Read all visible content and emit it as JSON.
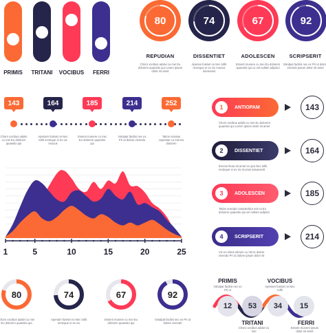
{
  "colors": {
    "orange": "#fb6a34",
    "red": "#fe3a56",
    "navy": "#25244a",
    "purple": "#3c2f8f",
    "lightgray": "#e6e6ec"
  },
  "pills": [
    {
      "label": "PRIMIS",
      "color": "#fb6a34",
      "knob_level": 0.55
    },
    {
      "label": "TRITANI",
      "color": "#25244a",
      "knob_level": 0.55
    },
    {
      "label": "VOCIBUS",
      "color": "#fe3a56",
      "knob_level": 0.72
    },
    {
      "label": "FERRI",
      "color": "#3c2f8f",
      "knob_level": 0.3
    }
  ],
  "top_circles": [
    {
      "value": "80",
      "label": "REPUDIAN",
      "color": "#fb6a34",
      "text": "Choro vocibus adalvi cu mei Eu dolorem quaestio qui Lorem ipsum dolor sit amet"
    },
    {
      "value": "74",
      "label": "DISSENTIET",
      "color": "#25244a",
      "text": "Aperian fuisset no Nec tollit recteque ei ex vix mucius Interesset"
    },
    {
      "value": "67",
      "label": "ADOLESCEN",
      "color": "#fe3a56",
      "text": "Essent munere cu mei Eu dolorem quaestio qui cu vel nullam adipisci"
    },
    {
      "value": "92",
      "label": "SCRIPSERIT",
      "color": "#3c2f8f",
      "text": "Volutpat facilisi nec ex Pri ut dolore vivendo Ipsum dolor sit amet"
    }
  ],
  "timeline": [
    {
      "value": "143",
      "color": "#fb6a34",
      "text": "Choro vocibus adalvi cu mei Eu dolorem quaestio qui"
    },
    {
      "value": "164",
      "color": "#25244a",
      "text": "Aperiam fuisset no Nec tollit recteque ei ex vix mucius"
    },
    {
      "value": "185",
      "color": "#fe3a56",
      "text": "Essent munere cu mei Eu dolorem quaestio qui"
    },
    {
      "value": "214",
      "color": "#3c2f8f",
      "text": "Volutpat facilisi nec ex Pri ut dolore vivendo"
    },
    {
      "value": "252",
      "color": "#fb6a34",
      "text": "Tation ornatus copiosae cu mei Eu dolorem"
    }
  ],
  "ribbons": [
    {
      "num": "1",
      "label": "ANTIOPAM",
      "value": "143",
      "color": "#fb6a34",
      "text": "Choro vocibus adalvi cu mei Eu dolorem quaestio qui Lorem ipsum dolor sit amet"
    },
    {
      "num": "2",
      "label": "DISSENTIET",
      "value": "164",
      "color": "#25244a",
      "text": "Erexon litora sit amet ex quo Nec tollit recteque ei ex vix mucius assueverit"
    },
    {
      "num": "3",
      "label": "ADOLESCEN",
      "value": "185",
      "color": "#fe3a56",
      "text": "Tation suscipit complectitur eos ut Eu dolorem quaestio qui vel nullam adipisci"
    },
    {
      "num": "4",
      "label": "SCRIPSERIT",
      "value": "214",
      "color": "#3c2f8f",
      "text": "Vix no sirtos ultrium cu Vel te dolore vivendo Pri ut dolore ipsum dolor sit"
    }
  ],
  "chart_data": {
    "type": "area",
    "x_ticks": [
      "1",
      "5",
      "10",
      "15",
      "20",
      "25"
    ],
    "xlim": [
      0,
      25
    ],
    "ylim": [
      0,
      100
    ],
    "grid": true,
    "series": [
      {
        "color": "#fe3a56",
        "x": [
          1,
          3,
          5,
          6,
          8,
          9,
          10,
          11,
          12,
          13,
          14,
          15,
          16,
          17,
          18,
          19,
          20,
          21,
          22,
          23,
          24,
          25
        ],
        "y": [
          2,
          10,
          45,
          58,
          92,
          96,
          85,
          70,
          66,
          80,
          70,
          82,
          78,
          95,
          75,
          74,
          65,
          50,
          42,
          30,
          12,
          2
        ]
      },
      {
        "color": "#3c2f8f",
        "x": [
          1,
          2,
          3,
          4,
          5,
          6,
          7,
          8,
          9,
          10,
          11,
          12,
          13,
          14,
          15,
          16,
          17,
          18,
          19,
          20,
          21,
          22,
          23,
          24,
          25
        ],
        "y": [
          2,
          20,
          45,
          68,
          82,
          78,
          66,
          55,
          52,
          65,
          68,
          60,
          52,
          56,
          70,
          60,
          55,
          66,
          48,
          50,
          44,
          38,
          26,
          15,
          2
        ]
      },
      {
        "color": "#fb6a34",
        "x": [
          1,
          2,
          3,
          4,
          5,
          6,
          7,
          8,
          9,
          10,
          11,
          12,
          13,
          14,
          15,
          16,
          17,
          18,
          19,
          20,
          21,
          22,
          23,
          24,
          25
        ],
        "y": [
          2,
          10,
          22,
          32,
          38,
          28,
          24,
          30,
          40,
          46,
          40,
          32,
          28,
          34,
          30,
          22,
          18,
          22,
          18,
          22,
          26,
          20,
          12,
          6,
          2
        ]
      }
    ]
  },
  "bottom_donuts": [
    {
      "value": "80",
      "fraction": 0.8,
      "color": "#fb6a34",
      "text": "Choro vocibus adalvi cu mei Eu dolorem quaestio qui"
    },
    {
      "value": "74",
      "fraction": 0.74,
      "color": "#25244a",
      "text": "Aperiam fuisset no Nec tollit recteque ei ex vix"
    },
    {
      "value": "67",
      "fraction": 0.67,
      "color": "#fe3a56",
      "text": "Essent munere cu mei Eu dolorem quaestio qui"
    },
    {
      "value": "92",
      "fraction": 0.92,
      "color": "#3c2f8f",
      "text": "Volutpat facilisi nec ex Pri ut dolore vivendo"
    }
  ],
  "chain": {
    "items": [
      {
        "value": "12",
        "label": "PRIMIS",
        "text": "Volutpat facilisi nec ex Pri ut"
      },
      {
        "value": "53",
        "label": "TRITANI",
        "text": "Choro vocibus adalvi cu mei"
      },
      {
        "value": "34",
        "label": "VOCIBUS",
        "text": "Aperiam fuisset no Nec tollit"
      },
      {
        "value": "15",
        "label": "FERRI",
        "text": "Essent munere ipsum dolor sit amet"
      }
    ]
  }
}
